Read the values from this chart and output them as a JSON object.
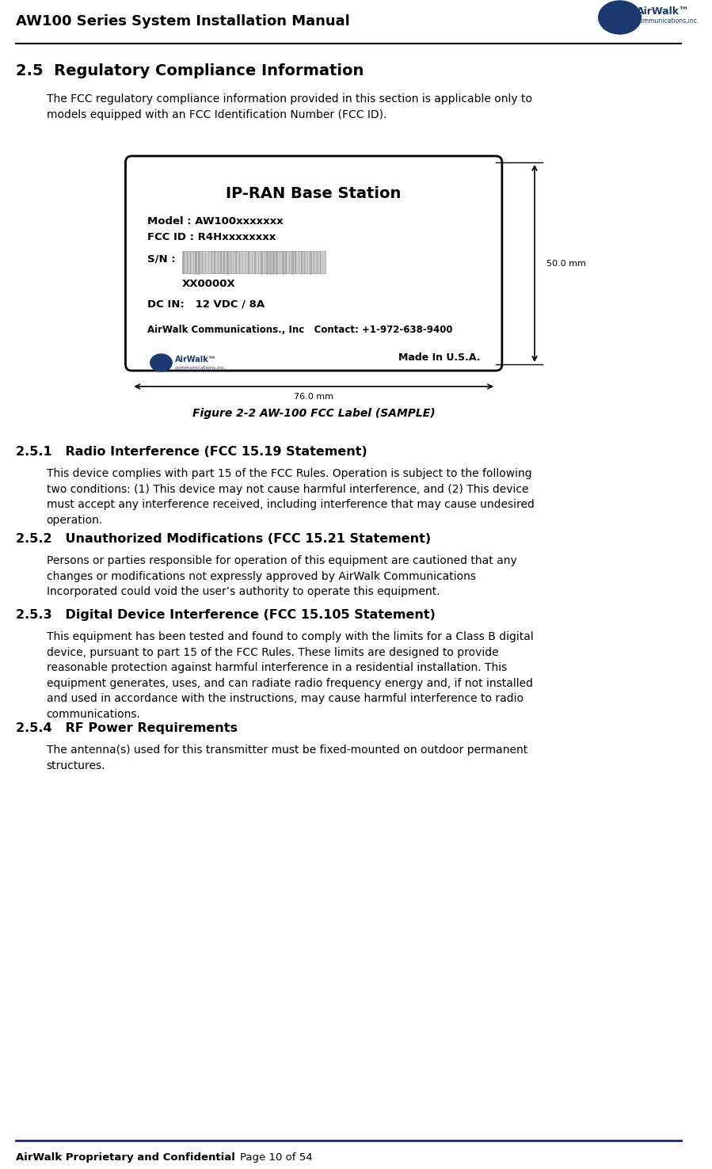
{
  "page_title": "AW100 Series System Installation Manual",
  "header_line_color": "#000000",
  "footer_line_color": "#1a237e",
  "footer_left": "AirWalk Proprietary and Confidential",
  "footer_right": "Page 10 of 54",
  "section_title": "2.5  Regulatory Compliance Information",
  "section_intro": "The FCC regulatory compliance information provided in this section is applicable only to\nmodels equipped with an FCC Identification Number (FCC ID).",
  "label_title": "IP-RAN Base Station",
  "label_model": "Model : AW100xxxxxxx",
  "label_fcc": "FCC ID : R4Hxxxxxxxx",
  "label_sn": "S/N :",
  "label_xx": "XX0000X",
  "label_dcin": "DC IN:   12 VDC / 8A",
  "label_company": "AirWalk Communications., Inc   Contact: +1-972-638-9400",
  "label_madein": "Made In U.S.A.",
  "label_width_mm": "76.0 mm",
  "label_height_mm": "50.0 mm",
  "figure_caption": "Figure 2-2 AW-100 FCC Label (SAMPLE)",
  "sub251_title": "2.5.1   Radio Interference (FCC 15.19 Statement)",
  "sub251_text": "This device complies with part 15 of the FCC Rules. Operation is subject to the following\ntwo conditions: (1) This device may not cause harmful interference, and (2) This device\nmust accept any interference received, including interference that may cause undesired\noperation.",
  "sub252_title": "2.5.2   Unauthorized Modifications (FCC 15.21 Statement)",
  "sub252_text": "Persons or parties responsible for operation of this equipment are cautioned that any\nchanges or modifications not expressly approved by AirWalk Communications\nIncorporated could void the user’s authority to operate this equipment.",
  "sub253_title": "2.5.3   Digital Device Interference (FCC 15.105 Statement)",
  "sub253_text": "This equipment has been tested and found to comply with the limits for a Class B digital\ndevice, pursuant to part 15 of the FCC Rules. These limits are designed to provide\nreasonable protection against harmful interference in a residential installation. This\nequipment generates, uses, and can radiate radio frequency energy and, if not installed\nand used in accordance with the instructions, may cause harmful interference to radio\ncommunications.",
  "sub254_title": "2.5.4   RF Power Requirements",
  "sub254_text": "The antenna(s) used for this transmitter must be fixed-mounted on outdoor permanent\nstructures.",
  "bg_color": "#ffffff",
  "text_color": "#000000",
  "label_box_color": "#ffffff",
  "label_border_color": "#000000",
  "dim_line_color": "#000000",
  "sn_bar_color": "#cccccc"
}
